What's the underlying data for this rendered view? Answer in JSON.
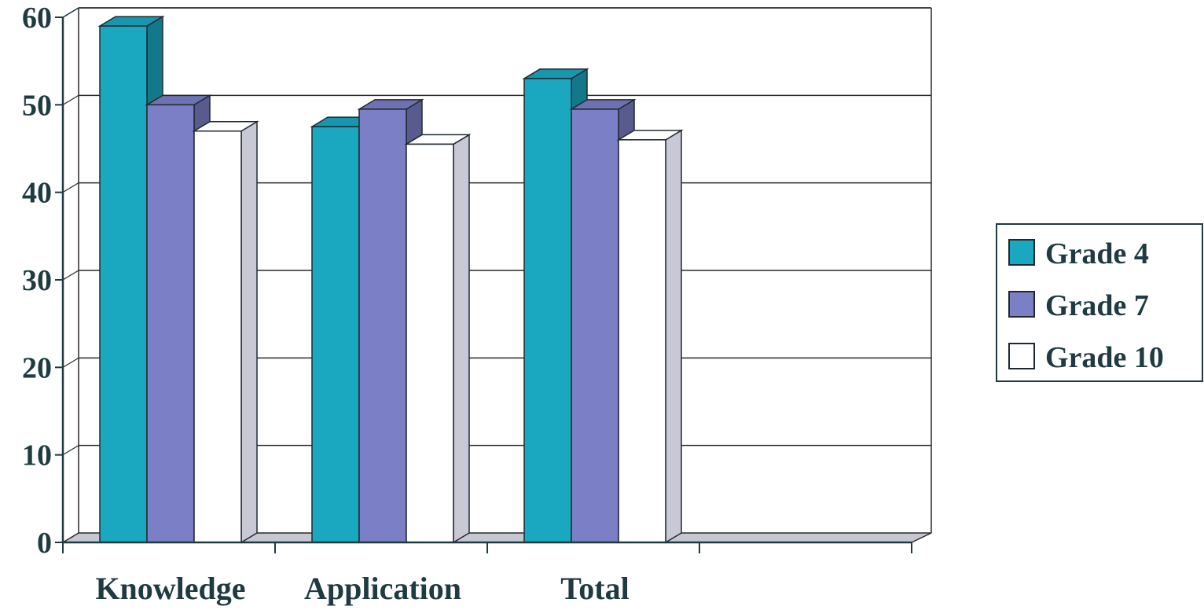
{
  "chart_data": {
    "type": "bar",
    "title": "",
    "xlabel": "",
    "ylabel": "",
    "categories": [
      "Knowledge",
      "Application",
      "Total"
    ],
    "series": [
      {
        "name": "Grade 4",
        "values": [
          59,
          47.5,
          53
        ],
        "color": "#1aa8c0"
      },
      {
        "name": "Grade 7",
        "values": [
          50,
          49.5,
          49.5
        ],
        "color": "#7b7fc6"
      },
      {
        "name": "Grade 10",
        "values": [
          47,
          45.5,
          46
        ],
        "color": "#ffffff"
      }
    ],
    "ylim": [
      0,
      60
    ],
    "yticks": [
      "0",
      "10",
      "20",
      "30",
      "40",
      "50",
      "60"
    ],
    "grid": true,
    "three_d": true,
    "legend_position": "right"
  }
}
